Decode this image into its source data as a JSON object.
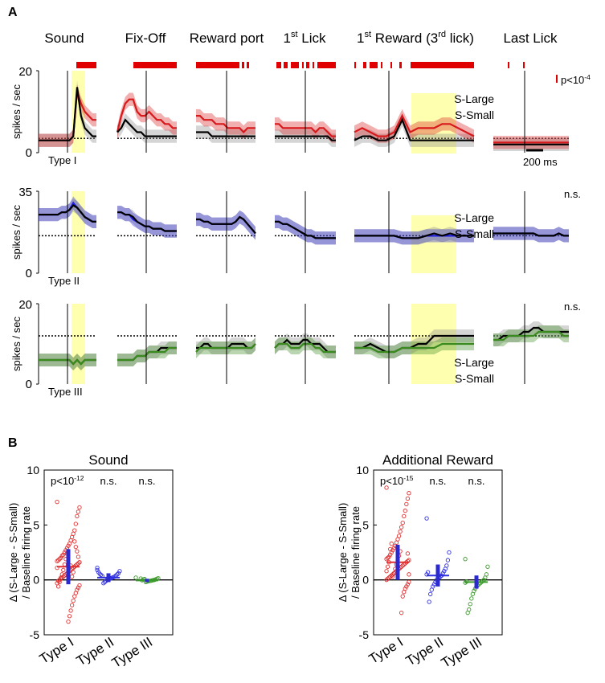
{
  "chart_data": [
    {
      "type": "line",
      "panel": "A",
      "panel_label": "A",
      "epochs": [
        "Sound",
        "Fix-Off",
        "Reward port",
        "1st Lick",
        "1st Reward (3rd lick)",
        "Last Lick"
      ],
      "epoch_titles": [
        {
          "main": "Sound"
        },
        {
          "main": "Fix-Off"
        },
        {
          "main": "Reward port"
        },
        {
          "main": "1",
          "sup": "st",
          "rest": " Lick"
        },
        {
          "main": "1",
          "sup": "st",
          "rest": " Reward (3",
          "sup2": "rd",
          "rest2": " lick)"
        },
        {
          "main": "Last Lick"
        }
      ],
      "ylabel": "spikes / sec",
      "scale_bar_label": "200 ms",
      "significance_bar_color": "#e00000",
      "rows": [
        {
          "name": "Type I",
          "ylim": [
            0,
            20
          ],
          "y_ticks": [
            "20",
            "0"
          ],
          "baseline": 3.5,
          "significance": "p<10",
          "significance_sup": "-4",
          "legend": {
            "large": "S-Large",
            "small": "S-Small"
          },
          "large_color": "#d7191c",
          "small_color": "#000000",
          "series_large": [
            [
              3,
              3,
              3,
              3,
              3,
              3,
              3,
              3,
              3,
              4,
              15,
              12,
              10,
              9,
              8,
              8
            ],
            [
              5,
              9,
              12,
              13,
              13,
              10,
              9,
              9,
              10,
              9,
              8,
              8,
              7,
              7,
              6,
              6
            ],
            [
              9,
              9,
              8,
              8,
              8,
              7,
              7,
              7,
              6,
              6,
              6,
              6,
              5,
              6,
              6,
              6
            ],
            [
              7,
              7,
              6,
              6,
              6,
              6,
              6,
              6,
              6,
              6,
              5,
              6,
              6,
              5,
              4,
              4
            ],
            [
              5,
              6,
              5,
              4,
              4,
              5,
              9,
              5,
              6,
              6,
              6,
              7,
              7,
              6,
              5,
              4
            ],
            [
              2.5,
              2.5,
              2.5,
              2.5,
              2.5,
              2.5,
              2.5,
              2.5,
              2.5,
              2.5,
              2.5,
              2.5,
              2.5,
              2.5,
              2.5,
              2.5
            ]
          ],
          "series_small": [
            [
              3,
              3,
              3,
              3,
              3,
              3,
              3,
              3,
              3,
              4,
              16,
              9,
              6,
              5,
              4,
              4
            ],
            [
              5,
              6,
              8,
              7,
              6,
              5,
              5,
              4,
              4,
              4,
              4,
              4,
              4,
              4,
              4,
              4
            ],
            [
              5,
              5,
              5,
              5,
              4,
              4,
              4,
              4,
              4,
              4,
              4,
              4,
              4,
              4,
              4,
              4
            ],
            [
              4,
              4,
              4,
              4,
              4,
              4,
              4,
              4,
              4,
              4,
              4,
              4,
              4,
              4,
              3,
              3
            ],
            [
              3,
              4,
              4,
              3,
              3,
              4,
              8,
              3,
              3,
              3,
              3,
              3,
              3,
              3,
              3,
              3
            ],
            [
              2,
              2,
              2,
              2,
              2,
              2,
              2,
              2,
              2,
              2,
              2,
              2,
              2,
              2,
              2,
              2
            ]
          ]
        },
        {
          "name": "Type II",
          "ylim": [
            0,
            35
          ],
          "y_ticks": [
            "35",
            "0"
          ],
          "baseline": 16,
          "significance": "n.s.",
          "legend": {
            "large": "S-Large",
            "small": "S-Small"
          },
          "large_color": "#1f1fe0",
          "small_color": "#000000",
          "series_large": [
            [
              25,
              25,
              25,
              25,
              25,
              25,
              26,
              26,
              27,
              30,
              28,
              26,
              24,
              23,
              22,
              22
            ],
            [
              26,
              26,
              25,
              25,
              23,
              22,
              21,
              20,
              20,
              19,
              19,
              19,
              18,
              18,
              18,
              18
            ],
            [
              23,
              23,
              22,
              22,
              21,
              21,
              21,
              21,
              21,
              21,
              22,
              24,
              23,
              21,
              19,
              17
            ],
            [
              22,
              22,
              21,
              21,
              20,
              19,
              18,
              17,
              16,
              16,
              15,
              15,
              15,
              15,
              15,
              15
            ],
            [
              16,
              16,
              16,
              16,
              16,
              16,
              15,
              15,
              15,
              16,
              16,
              16,
              16,
              16,
              16,
              16
            ],
            [
              17,
              17,
              17,
              17,
              17,
              17,
              17,
              17,
              17,
              16,
              16,
              16,
              16,
              17,
              16,
              16
            ]
          ],
          "series_small": [
            [
              25,
              25,
              25,
              25,
              25,
              25,
              26,
              26,
              27,
              29,
              28,
              26,
              24,
              23,
              22,
              22
            ],
            [
              26,
              26,
              25,
              25,
              24,
              22,
              21,
              20,
              20,
              19,
              19,
              19,
              18,
              18,
              18,
              18
            ],
            [
              23,
              23,
              22,
              22,
              21,
              21,
              21,
              21,
              21,
              21,
              22,
              24,
              23,
              21,
              19,
              17
            ],
            [
              22,
              22,
              21,
              21,
              20,
              19,
              18,
              17,
              16,
              16,
              15,
              15,
              15,
              15,
              15,
              15
            ],
            [
              16,
              16,
              16,
              16,
              16,
              16,
              15,
              15,
              15,
              16,
              17,
              16,
              17,
              16,
              16,
              16
            ],
            [
              17,
              17,
              17,
              17,
              17,
              17,
              17,
              17,
              17,
              16,
              16,
              16,
              16,
              17,
              16,
              16
            ]
          ]
        },
        {
          "name": "Type III",
          "ylim": [
            0,
            20
          ],
          "y_ticks": [
            "20",
            "0"
          ],
          "baseline": 12,
          "significance": "n.s.",
          "legend": {
            "large": "S-Large",
            "small": "S-Small"
          },
          "large_color": "#3a8a1f",
          "small_color": "#000000",
          "series_large": [
            [
              6,
              6,
              6,
              6,
              6,
              6,
              6,
              6,
              6,
              5,
              6,
              5,
              6,
              6,
              6,
              6
            ],
            [
              6,
              6,
              6,
              6,
              6,
              7,
              7,
              7,
              8,
              8,
              8,
              8,
              8,
              9,
              9,
              9
            ],
            [
              8,
              9,
              9,
              9,
              9,
              9,
              9,
              9,
              9,
              9,
              9,
              9,
              9,
              9,
              9,
              10
            ],
            [
              9,
              10,
              10,
              10,
              9,
              9,
              9,
              10,
              10,
              10,
              9,
              9,
              8,
              8,
              8,
              8
            ],
            [
              9,
              9,
              9,
              8,
              8,
              8,
              9,
              9,
              9,
              9,
              9,
              10,
              10,
              10,
              10,
              10
            ],
            [
              11,
              11,
              11,
              12,
              12,
              12,
              12,
              12,
              12,
              13,
              13,
              13,
              13,
              13,
              12,
              12
            ]
          ],
          "series_small": [
            [
              6,
              6,
              6,
              6,
              6,
              6,
              6,
              6,
              6,
              5,
              6,
              5,
              6,
              6,
              6,
              6
            ],
            [
              6,
              6,
              6,
              6,
              6,
              7,
              7,
              7,
              8,
              8,
              8,
              9,
              9,
              9,
              9,
              9
            ],
            [
              9,
              9,
              10,
              10,
              9,
              9,
              9,
              9,
              9,
              10,
              10,
              10,
              10,
              9,
              9,
              10
            ],
            [
              9,
              10,
              10,
              11,
              10,
              10,
              10,
              11,
              11,
              10,
              10,
              10,
              9,
              8,
              8,
              8
            ],
            [
              9,
              9,
              10,
              9,
              8,
              8,
              9,
              9,
              10,
              10,
              12,
              12,
              12,
              12,
              12,
              12
            ],
            [
              11,
              11,
              12,
              12,
              12,
              12,
              13,
              13,
              14,
              14,
              13,
              13,
              13,
              13,
              13,
              13
            ]
          ]
        }
      ],
      "highlight_epochs": [
        "Sound",
        "1st Reward (3rd lick)"
      ]
    },
    {
      "type": "scatter",
      "panel": "B",
      "panel_label": "B",
      "ylabel_line1": "Δ (S-Large - S-Small)",
      "ylabel_line2": "/ Baseline firing rate",
      "ylim": [
        -5,
        10
      ],
      "y_ticks": [
        10,
        5,
        0,
        -5
      ],
      "categories": [
        "Type I",
        "Type II",
        "Type III"
      ],
      "category_colors": [
        "#e03030",
        "#3030e0",
        "#3a9a2a"
      ],
      "summary_color": "#2a2ad0",
      "plots": [
        {
          "title": "Sound",
          "annotations": [
            {
              "text": "p<10",
              "sup": "-12"
            },
            {
              "text": "n.s."
            },
            {
              "text": "n.s."
            }
          ],
          "mean": [
            1.2,
            0.2,
            -0.05
          ],
          "sd": [
            1.6,
            0.4,
            0.15
          ],
          "groups": [
            [
              7.1,
              6.6,
              6.2,
              5.8,
              5.1,
              4.5,
              4.2,
              3.9,
              3.6,
              3.3,
              3.1,
              2.9,
              2.7,
              2.5,
              2.3,
              2.2,
              2.0,
              1.9,
              1.8,
              1.7,
              1.6,
              1.5,
              1.4,
              1.3,
              1.2,
              1.1,
              1.0,
              0.9,
              0.8,
              0.7,
              0.6,
              0.5,
              0.4,
              0.3,
              0.2,
              0.1,
              0.0,
              -0.1,
              -0.3,
              -0.5,
              -0.7,
              -0.9,
              -1.2,
              -1.5,
              -1.9,
              -2.3,
              -2.8,
              -3.3,
              -3.8,
              2.4,
              1.9,
              1.4,
              0.9,
              0.5,
              0.2,
              -0.2,
              -0.6,
              1.1,
              1.6,
              2.1,
              2.6,
              3.0,
              3.5,
              0.7,
              0.3,
              1.3
            ],
            [
              1.1,
              0.8,
              0.6,
              0.5,
              0.4,
              0.3,
              0.25,
              0.2,
              0.15,
              0.1,
              0.05,
              0.0,
              -0.1,
              -0.2,
              -0.3,
              0.35,
              0.45,
              0.55,
              0.7,
              0.9
            ],
            [
              0.2,
              0.15,
              0.1,
              0.05,
              0.0,
              -0.02,
              -0.05,
              -0.08,
              -0.1,
              -0.12,
              -0.15,
              -0.2,
              0.08,
              0.03,
              -0.03,
              0.12
            ]
          ]
        },
        {
          "title": "Additional Reward",
          "annotations": [
            {
              "text": "p<10",
              "sup": "-15"
            },
            {
              "text": "n.s."
            },
            {
              "text": "n.s."
            }
          ],
          "mean": [
            1.6,
            0.4,
            -0.2
          ],
          "sd": [
            1.6,
            1.0,
            0.6
          ],
          "groups": [
            [
              8.4,
              7.9,
              7.4,
              6.9,
              6.3,
              5.8,
              5.2,
              4.8,
              4.4,
              4.0,
              3.7,
              3.4,
              3.1,
              2.9,
              2.7,
              2.5,
              2.3,
              2.1,
              2.0,
              1.9,
              1.8,
              1.7,
              1.6,
              1.5,
              1.4,
              1.3,
              1.2,
              1.1,
              1.0,
              0.9,
              0.8,
              0.7,
              0.6,
              0.5,
              0.4,
              0.3,
              0.2,
              0.1,
              0.0,
              -0.2,
              -0.4,
              -0.6,
              -0.8,
              -1.1,
              -1.5,
              -3.0,
              2.6,
              2.2,
              1.8,
              1.4,
              1.0,
              0.6,
              0.3,
              3.3,
              2.8,
              1.6,
              1.2,
              0.8,
              0.5,
              2.4
            ],
            [
              5.6,
              2.5,
              1.8,
              1.3,
              1.0,
              0.8,
              0.6,
              0.4,
              0.3,
              0.2,
              0.1,
              0.0,
              -0.2,
              -0.4,
              -0.6,
              -0.9,
              -1.3,
              -2.0,
              0.7,
              0.5
            ],
            [
              1.9,
              1.2,
              0.5,
              0.2,
              0.0,
              -0.1,
              -0.2,
              -0.3,
              -0.4,
              -0.5,
              -0.6,
              -0.8,
              -1.0,
              -1.3,
              -1.7,
              -2.2,
              -2.7,
              -3.0,
              -0.15,
              -0.25
            ]
          ]
        }
      ]
    }
  ]
}
